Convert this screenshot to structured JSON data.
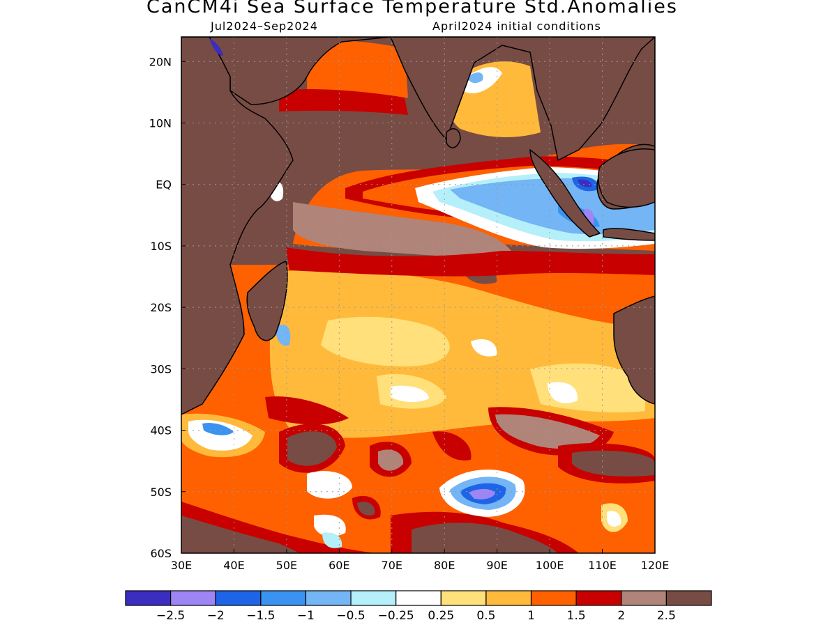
{
  "title": "CanCM4i Sea Surface Temperature Std.Anomalies",
  "subtitle_left": "Jul2024–Sep2024",
  "subtitle_right": "April2024 initial conditions",
  "colors": {
    "land": "#774c44",
    "coastline": "#000000",
    "grid": "#9a9a9a",
    "palette": [
      "#3a2dc0",
      "#9e85f5",
      "#1e64e6",
      "#3a93f0",
      "#73b5f5",
      "#b5f0fa",
      "#ffffff",
      "#ffe07a",
      "#ffba3c",
      "#ff6000",
      "#c80000",
      "#b08478",
      "#774c44"
    ]
  },
  "map": {
    "region": "Indian Ocean",
    "lon_range": [
      30,
      120
    ],
    "lat_range": [
      -60,
      24
    ],
    "x_ticks": [
      "30E",
      "40E",
      "50E",
      "60E",
      "70E",
      "80E",
      "90E",
      "100E",
      "110E",
      "120E"
    ],
    "y_ticks": [
      "20N",
      "10N",
      "EQ",
      "10S",
      "20S",
      "30S",
      "40S",
      "50S",
      "60S"
    ]
  },
  "colorbar": {
    "labels": [
      "-2.5",
      "-2",
      "-1.5",
      "-1",
      "-0.5",
      "-0.25",
      "0.25",
      "0.5",
      "1",
      "1.5",
      "2",
      "2.5"
    ]
  }
}
